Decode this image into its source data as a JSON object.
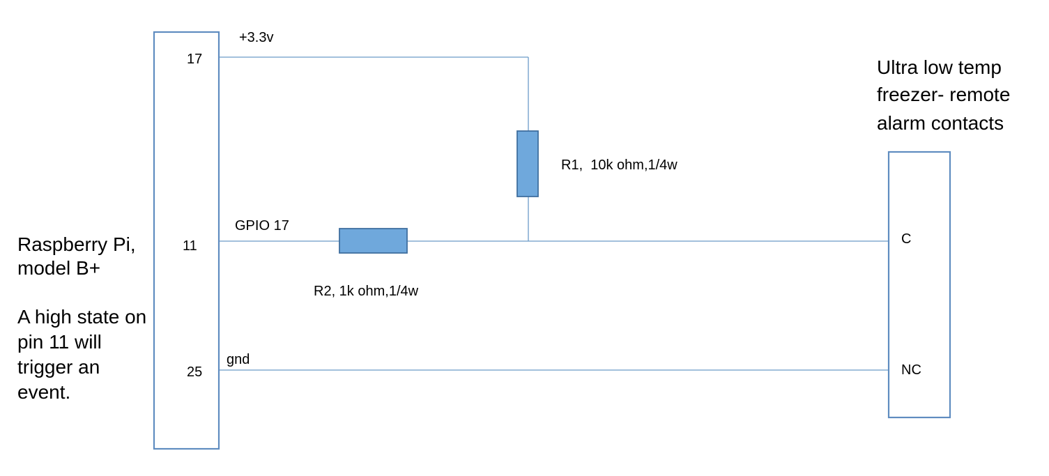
{
  "diagram": {
    "pi_block": {
      "title_lines": [
        "Raspberry Pi,",
        "model B+"
      ],
      "note_lines": [
        "A high state on",
        "pin 11 will",
        "trigger an",
        "event."
      ],
      "pins": [
        "17",
        "11",
        "25"
      ]
    },
    "freezer_block": {
      "title_lines": [
        "Ultra low temp",
        "freezer- remote",
        "alarm contacts"
      ],
      "contacts": [
        "C",
        "NC"
      ]
    },
    "nets": {
      "supply": "+3.3v",
      "gpio": "GPIO 17",
      "ground": "gnd"
    },
    "resistors": {
      "r1": "R1,  10k ohm,1/4w",
      "r2": "R2, 1k ohm,1/4w"
    },
    "colors": {
      "wire": "#6b9bc8",
      "box_border": "#5f8cc0",
      "resistor_fill": "#6fa8dc",
      "resistor_border": "#3f6f9f"
    }
  }
}
